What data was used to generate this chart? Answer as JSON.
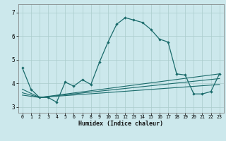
{
  "background_color": "#cce8ec",
  "line_color": "#1a6b6b",
  "grid_color": "#aacccc",
  "xlabel": "Humidex (Indice chaleur)",
  "xlim": [
    -0.5,
    23.5
  ],
  "ylim": [
    2.75,
    7.35
  ],
  "yticks": [
    3,
    4,
    5,
    6,
    7
  ],
  "xticks": [
    0,
    1,
    2,
    3,
    4,
    5,
    6,
    7,
    8,
    9,
    10,
    11,
    12,
    13,
    14,
    15,
    16,
    17,
    18,
    19,
    20,
    21,
    22,
    23
  ],
  "line1_x": [
    0,
    1,
    2,
    3,
    4,
    5,
    6,
    7,
    8,
    9,
    10,
    11,
    12,
    13,
    14,
    15,
    16,
    17,
    18,
    19,
    20,
    21,
    22,
    23
  ],
  "line1_y": [
    4.65,
    3.75,
    3.4,
    3.4,
    3.2,
    4.05,
    3.88,
    4.15,
    3.95,
    4.9,
    5.75,
    6.5,
    6.78,
    6.68,
    6.58,
    6.28,
    5.87,
    5.75,
    4.4,
    4.35,
    3.55,
    3.55,
    3.65,
    4.4
  ],
  "line2_x": [
    0,
    2,
    23
  ],
  "line2_y": [
    3.75,
    3.4,
    4.4
  ],
  "line3_x": [
    0,
    2,
    23
  ],
  "line3_y": [
    3.6,
    3.4,
    4.2
  ],
  "line4_x": [
    0,
    2,
    23
  ],
  "line4_y": [
    3.5,
    3.4,
    3.95
  ]
}
